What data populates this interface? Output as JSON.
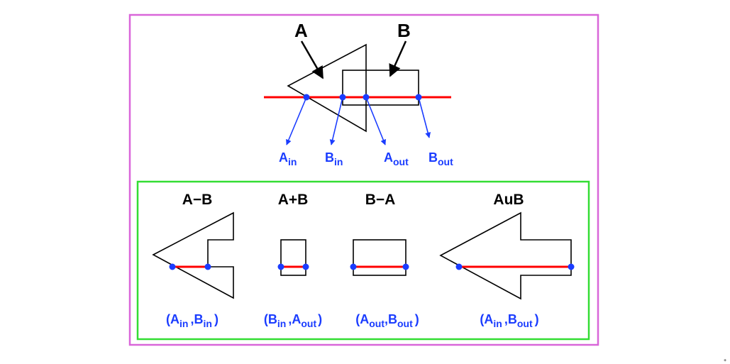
{
  "colors": {
    "outer_frame": "#d966d9",
    "inner_frame": "#33dd33",
    "ray": "#ff0000",
    "points": "#1a3cff",
    "labels": "#1a3cff",
    "shape": "#000000"
  },
  "top": {
    "shape_a_label": "A",
    "shape_b_label": "B",
    "points": [
      {
        "main": "A",
        "sub": "in"
      },
      {
        "main": "B",
        "sub": "in"
      },
      {
        "main": "A",
        "sub": "out"
      },
      {
        "main": "B",
        "sub": "out"
      }
    ]
  },
  "panels": [
    {
      "title": "A−B",
      "open": "(",
      "p1": "A",
      "p1sub": "in",
      "sep": ",",
      "p2": "B",
      "p2sub": "in",
      "close": ")"
    },
    {
      "title": "A+B",
      "open": "(",
      "p1": "B",
      "p1sub": "in",
      "sep": ",",
      "p2": "A",
      "p2sub": "out",
      "close": ")"
    },
    {
      "title": "B−A",
      "open": "(",
      "p1": "A",
      "p1sub": "out",
      "sep": ",",
      "p2": "B",
      "p2sub": "out",
      "close": ")"
    },
    {
      "title": "AuB",
      "open": "(",
      "p1": "A",
      "p1sub": "in",
      "sep": ",",
      "p2": "B",
      "p2sub": "out",
      "close": ")"
    }
  ]
}
